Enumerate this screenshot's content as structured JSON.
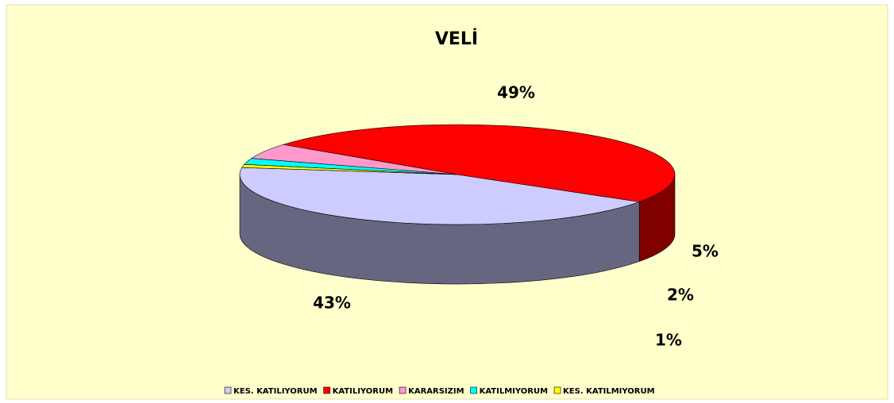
{
  "chart_data": {
    "type": "pie3d",
    "title": "VELİ",
    "categories": [
      "KES. KATILIYORUM",
      "KATILIYORUM",
      "KARARSIZIM",
      "KATILMIYORUM",
      "KES. KATILMIYORUM"
    ],
    "values": [
      43,
      49,
      5,
      2,
      1
    ],
    "value_labels": [
      "43%",
      "49%",
      "5%",
      "2%",
      "1%"
    ],
    "colors": [
      "#ccccff",
      "#ff0000",
      "#ff99cc",
      "#00ffff",
      "#ffff00"
    ],
    "legend": "bottom"
  }
}
